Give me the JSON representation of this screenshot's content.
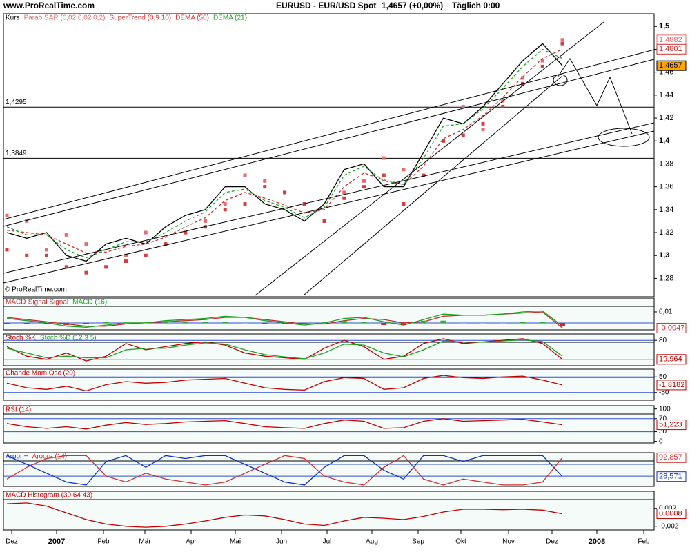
{
  "chart_data": [
    {
      "type": "line",
      "source": "www.ProRealTime.com",
      "title": "EURUSD - EUR/USD Spot",
      "subtitle": "1,4657 (+0,00%)",
      "timeframe": "Täglich 0:00",
      "watermark": "© ProRealTime.com",
      "ylim": [
        1.264,
        1.511
      ],
      "yticks": [
        {
          "value": 1.28,
          "label": "1,28"
        },
        {
          "value": 1.3,
          "label": "1,3"
        },
        {
          "value": 1.32,
          "label": "1,32"
        },
        {
          "value": 1.34,
          "label": "1,34"
        },
        {
          "value": 1.36,
          "label": "1,36"
        },
        {
          "value": 1.38,
          "label": "1,38"
        },
        {
          "value": 1.4,
          "label": "1,4"
        },
        {
          "value": 1.42,
          "label": "1,42"
        },
        {
          "value": 1.44,
          "label": "1,44"
        },
        {
          "value": 1.46,
          "label": "1,46"
        },
        {
          "value": 1.48,
          "label": "1,48"
        },
        {
          "value": 1.5,
          "label": "1,5"
        }
      ],
      "hlines": [
        {
          "value": 1.4295,
          "label": "1,4295"
        },
        {
          "value": 1.3849,
          "label": "1,3849"
        }
      ],
      "x_axis_labels": [
        "Dez",
        "2007",
        "Feb",
        "Mär",
        "Apr",
        "Mai",
        "Jun",
        "Jul",
        "Aug",
        "Sep",
        "Okt",
        "Nov",
        "Dez",
        "2008",
        "Feb"
      ],
      "series": [
        {
          "name": "Kurs",
          "color": "#000000",
          "style": "line",
          "last_label": "1,4657",
          "label_fill": "#ffa500",
          "values": [
            1.32,
            1.315,
            1.32,
            1.3,
            1.295,
            1.31,
            1.315,
            1.31,
            1.325,
            1.335,
            1.34,
            1.36,
            1.36,
            1.345,
            1.34,
            1.33,
            1.345,
            1.375,
            1.38,
            1.36,
            1.36,
            1.39,
            1.42,
            1.415,
            1.43,
            1.45,
            1.47,
            1.485,
            1.4657
          ]
        },
        {
          "name": "Parab SAR (0,02 0,02 0,2)",
          "color": "#e07070",
          "style": "dots",
          "last_label": "1,4882",
          "values": [
            1.335,
            1.33,
            1.305,
            1.318,
            1.31,
            1.29,
            1.3,
            1.32,
            1.31,
            1.32,
            1.33,
            1.345,
            1.37,
            1.365,
            1.355,
            1.345,
            1.33,
            1.355,
            1.365,
            1.385,
            1.375,
            1.37,
            1.4,
            1.43,
            1.41,
            1.435,
            1.455,
            1.47,
            1.4882
          ]
        },
        {
          "name": "SuperTrend (0,9 10)",
          "color": "#d04040",
          "style": "dots",
          "values": [
            1.305,
            1.3,
            1.3,
            1.29,
            1.285,
            1.29,
            1.295,
            1.3,
            1.31,
            1.32,
            1.325,
            1.34,
            1.345,
            1.36,
            1.355,
            1.345,
            1.33,
            1.35,
            1.36,
            1.37,
            1.345,
            1.37,
            1.4,
            1.405,
            1.415,
            1.43,
            1.45,
            1.465,
            1.485
          ]
        },
        {
          "name": "DEMA (50)",
          "color": "#d03030",
          "style": "dashed",
          "last_label": "1,4801",
          "values": [
            1.322,
            1.32,
            1.318,
            1.31,
            1.302,
            1.303,
            1.308,
            1.31,
            1.316,
            1.325,
            1.333,
            1.348,
            1.355,
            1.35,
            1.344,
            1.337,
            1.34,
            1.36,
            1.372,
            1.366,
            1.362,
            1.378,
            1.402,
            1.41,
            1.422,
            1.438,
            1.456,
            1.472,
            1.4801
          ]
        },
        {
          "name": "DEMA (21)",
          "color": "#20a020",
          "style": "dashed",
          "values": [
            1.325,
            1.318,
            1.318,
            1.305,
            1.298,
            1.305,
            1.312,
            1.312,
            1.32,
            1.33,
            1.338,
            1.355,
            1.358,
            1.348,
            1.342,
            1.333,
            1.342,
            1.37,
            1.378,
            1.365,
            1.362,
            1.385,
            1.413,
            1.415,
            1.428,
            1.446,
            1.465,
            1.48,
            1.472
          ]
        }
      ]
    },
    {
      "type": "line",
      "ylim": [
        -0.0063,
        0.0225
      ],
      "yticks": [
        {
          "value": 0.01,
          "label": "0,01"
        }
      ],
      "zero_line": true,
      "series": [
        {
          "name": "MACD-Signal Signal",
          "color": "#c03030",
          "style": "line",
          "last_label": "-0,0047",
          "values": [
            0.005,
            0.003,
            0.001,
            -0.001,
            -0.003,
            -0.003,
            -0.001,
            0.0,
            0.001,
            0.002,
            0.003,
            0.005,
            0.005,
            0.003,
            0.001,
            -0.001,
            -0.001,
            0.002,
            0.004,
            0.003,
            0.0,
            0.001,
            0.006,
            0.007,
            0.007,
            0.008,
            0.009,
            0.01,
            -0.0047
          ]
        },
        {
          "name": "MACD (16)",
          "color": "#20a020",
          "style": "line",
          "values": [
            0.004,
            0.002,
            0.0,
            -0.003,
            -0.004,
            -0.002,
            0.0,
            0.0,
            0.002,
            0.003,
            0.004,
            0.006,
            0.005,
            0.002,
            0.0,
            -0.002,
            0.0,
            0.004,
            0.005,
            0.001,
            -0.002,
            0.003,
            0.008,
            0.007,
            0.007,
            0.008,
            0.01,
            0.011,
            -0.003
          ]
        },
        {
          "color": "#30b030",
          "color_negative": "#c03030",
          "style": "bar",
          "values": [
            -0.001,
            -0.001,
            -0.001,
            -0.002,
            -0.001,
            0.001,
            0.001,
            0.0,
            0.001,
            0.001,
            0.001,
            0.001,
            0.0,
            -0.001,
            -0.001,
            -0.001,
            0.001,
            0.002,
            0.001,
            -0.002,
            -0.002,
            0.002,
            0.002,
            0.0,
            0.0,
            0.0,
            0.001,
            0.001,
            -0.003
          ]
        }
      ]
    },
    {
      "type": "line",
      "ylim": [
        0,
        100
      ],
      "yticks": [
        80
      ],
      "levels": [
        20,
        80
      ],
      "series": [
        {
          "name": "Stoch %K",
          "color": "#c00000",
          "style": "line",
          "last_label": "19,964",
          "values": [
            60,
            30,
            20,
            40,
            15,
            30,
            70,
            50,
            60,
            70,
            75,
            65,
            40,
            30,
            25,
            20,
            55,
            80,
            60,
            20,
            30,
            70,
            85,
            70,
            75,
            80,
            85,
            70,
            19.964
          ]
        },
        {
          "name": "Stoch %D (12 3 5)",
          "color": "#20a020",
          "style": "line",
          "values": [
            55,
            40,
            25,
            30,
            25,
            25,
            50,
            55,
            55,
            65,
            72,
            68,
            50,
            35,
            28,
            22,
            40,
            68,
            65,
            40,
            28,
            50,
            78,
            75,
            74,
            78,
            82,
            76,
            30
          ]
        }
      ]
    },
    {
      "type": "line",
      "ylim": [
        -100,
        100
      ],
      "yticks": [
        -50,
        50
      ],
      "levels": [
        -50,
        50
      ],
      "series": [
        {
          "name": "Chande Mom Osc (20)",
          "color": "#c00000",
          "style": "line",
          "last_label": "-1,8182",
          "values": [
            10,
            -20,
            -30,
            -10,
            -40,
            0,
            20,
            10,
            15,
            30,
            35,
            40,
            10,
            -20,
            -30,
            -35,
            20,
            45,
            40,
            -30,
            -20,
            40,
            60,
            45,
            40,
            50,
            55,
            30,
            -1.8182
          ]
        }
      ]
    },
    {
      "type": "line",
      "ylim": [
        -5,
        110
      ],
      "yticks": [
        0,
        30,
        70,
        100
      ],
      "levels": [
        30,
        70
      ],
      "series": [
        {
          "name": "RSI (14)",
          "color": "#c00000",
          "style": "line",
          "last_label": "51,223",
          "values": [
            55,
            45,
            40,
            45,
            38,
            50,
            58,
            52,
            55,
            60,
            62,
            64,
            55,
            45,
            42,
            40,
            55,
            66,
            62,
            40,
            42,
            62,
            70,
            62,
            64,
            66,
            68,
            60,
            51.223
          ]
        }
      ]
    },
    {
      "type": "line",
      "ylim": [
        -5,
        110
      ],
      "levels": [
        30,
        70
      ],
      "series": [
        {
          "name": "Aroon+",
          "color": "#1030c0",
          "style": "line",
          "last_label": "28,571",
          "values": [
            100,
            70,
            40,
            10,
            0,
            80,
            100,
            60,
            100,
            90,
            100,
            100,
            70,
            40,
            10,
            0,
            60,
            100,
            100,
            50,
            20,
            100,
            100,
            80,
            100,
            100,
            100,
            100,
            28.571
          ]
        },
        {
          "name": "Aroon- (14)",
          "color": "#d03030",
          "style": "line",
          "last_label": "92,857",
          "values": [
            20,
            60,
            90,
            100,
            100,
            30,
            10,
            40,
            20,
            10,
            0,
            10,
            40,
            70,
            100,
            90,
            30,
            10,
            0,
            60,
            100,
            20,
            0,
            20,
            10,
            0,
            0,
            10,
            92.857
          ]
        }
      ]
    },
    {
      "type": "line",
      "ylim": [
        -0.0028,
        0.0058
      ],
      "yticks": [
        {
          "value": 0.002,
          "label": "0,002"
        },
        {
          "value": -0.002,
          "label": "-0,002"
        }
      ],
      "series": [
        {
          "name": "MACD Histogram (30 64 43)",
          "color": "#c00000",
          "style": "line",
          "last_label": "0,0008",
          "values": [
            0.003,
            0.0032,
            0.0025,
            0.001,
            -0.0005,
            -0.0015,
            -0.002,
            -0.0022,
            -0.002,
            -0.0015,
            -0.0008,
            0.0,
            0.0005,
            0.0003,
            -0.0005,
            -0.0015,
            -0.0018,
            -0.0008,
            0.0,
            -0.0002,
            -0.0005,
            0.0002,
            0.0012,
            0.0018,
            0.0018,
            0.0017,
            0.0018,
            0.0016,
            0.0008
          ]
        }
      ]
    }
  ]
}
